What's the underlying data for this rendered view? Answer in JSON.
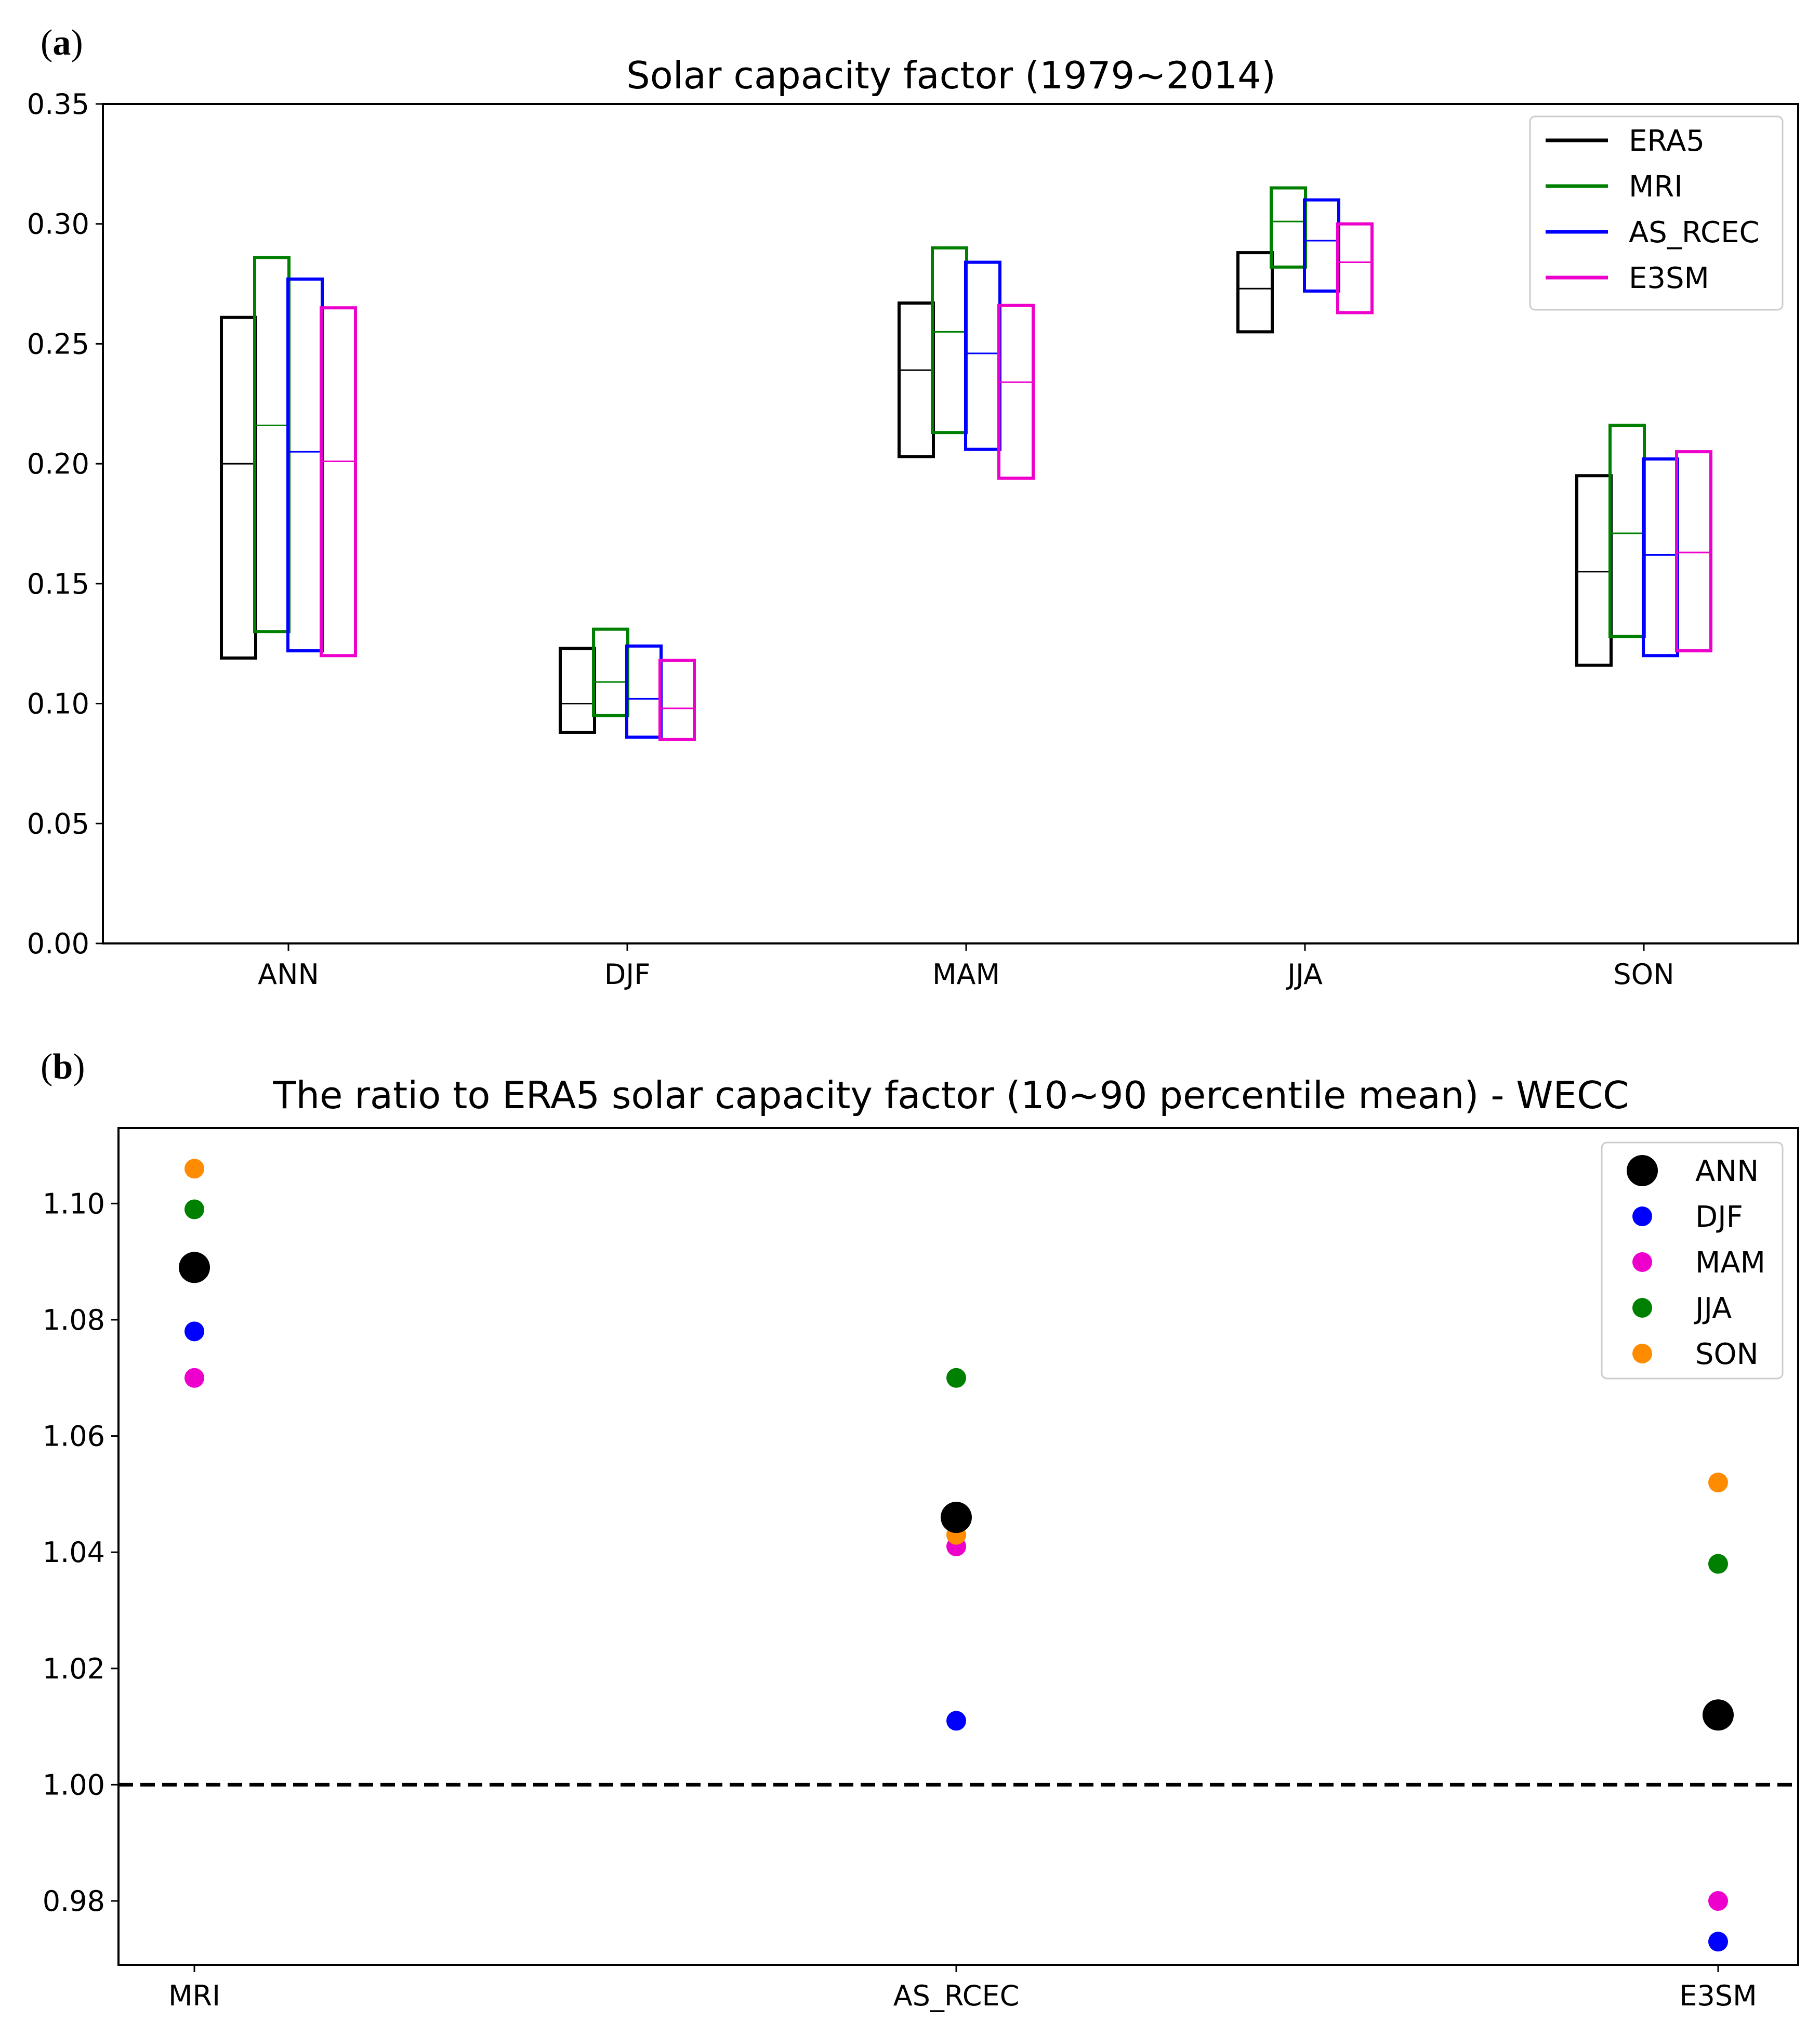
{
  "chart_data": [
    {
      "panel_label": "a",
      "type": "bar",
      "title": "Solar capacity factor (1979~2014)",
      "xlabel": "",
      "ylabel": "",
      "ylim": [
        0,
        0.35
      ],
      "yticks": [
        "0.00",
        "0.05",
        "0.10",
        "0.15",
        "0.20",
        "0.25",
        "0.30",
        "0.35"
      ],
      "categories": [
        "ANN",
        "DJF",
        "MAM",
        "JJA",
        "SON"
      ],
      "legend_position": "top-right",
      "series": [
        {
          "name": "ERA5",
          "color": "#000000",
          "low": [
            0.119,
            0.088,
            0.203,
            0.255,
            0.116
          ],
          "mean": [
            0.2,
            0.1,
            0.239,
            0.273,
            0.155
          ],
          "high": [
            0.261,
            0.123,
            0.267,
            0.288,
            0.195
          ]
        },
        {
          "name": "MRI",
          "color": "#008000",
          "low": [
            0.13,
            0.095,
            0.213,
            0.282,
            0.128
          ],
          "mean": [
            0.216,
            0.109,
            0.255,
            0.301,
            0.171
          ],
          "high": [
            0.286,
            0.131,
            0.29,
            0.315,
            0.216
          ]
        },
        {
          "name": "AS_RCEC",
          "color": "#0000ff",
          "low": [
            0.122,
            0.086,
            0.206,
            0.272,
            0.12
          ],
          "mean": [
            0.205,
            0.102,
            0.246,
            0.293,
            0.162
          ],
          "high": [
            0.277,
            0.124,
            0.284,
            0.31,
            0.202
          ]
        },
        {
          "name": "E3SM",
          "color": "#ee00cc",
          "low": [
            0.12,
            0.085,
            0.194,
            0.263,
            0.122
          ],
          "mean": [
            0.201,
            0.098,
            0.234,
            0.284,
            0.163
          ],
          "high": [
            0.265,
            0.118,
            0.266,
            0.3,
            0.205
          ]
        }
      ]
    },
    {
      "panel_label": "b",
      "type": "scatter",
      "title": "The ratio to ERA5 solar capacity factor (10~90 percentile mean) - WECC",
      "xlabel": "",
      "ylabel": "",
      "ylim": [
        0.969,
        1.113
      ],
      "yticks": [
        "0.98",
        "1.00",
        "1.02",
        "1.04",
        "1.06",
        "1.08",
        "1.10"
      ],
      "categories": [
        "MRI",
        "AS_RCEC",
        "E3SM"
      ],
      "reference_line": 1.0,
      "legend_position": "top-right",
      "series": [
        {
          "name": "ANN",
          "color": "#000000",
          "marker": "large",
          "values": [
            1.089,
            1.046,
            1.012
          ]
        },
        {
          "name": "DJF",
          "color": "#0000ff",
          "marker": "small",
          "values": [
            1.078,
            1.011,
            0.973
          ]
        },
        {
          "name": "MAM",
          "color": "#ee00cc",
          "marker": "small",
          "values": [
            1.07,
            1.041,
            0.98
          ]
        },
        {
          "name": "JJA",
          "color": "#008000",
          "marker": "small",
          "values": [
            1.099,
            1.07,
            1.038
          ]
        },
        {
          "name": "SON",
          "color": "#ff8c00",
          "marker": "small",
          "values": [
            1.106,
            1.043,
            1.052
          ]
        }
      ]
    }
  ]
}
